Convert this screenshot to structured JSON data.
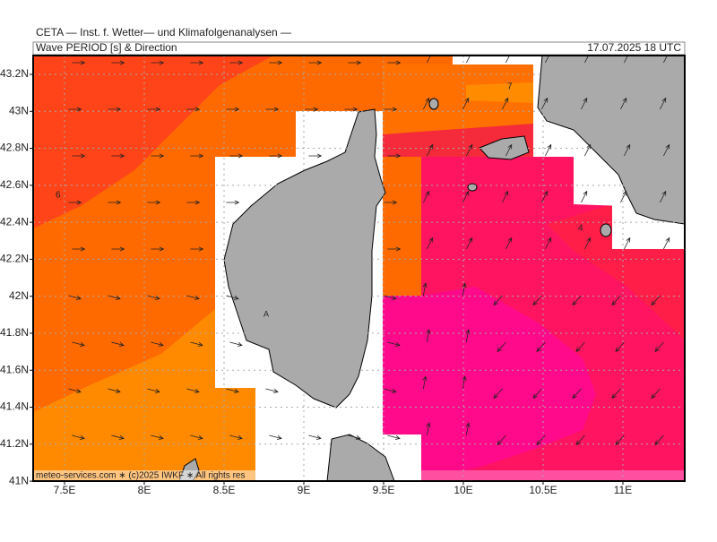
{
  "header": {
    "title": "CETA — Inst. f. Wetter— und Klimafolgenanalysen —",
    "subtitle": "Wave PERIOD [s] & Direction",
    "date": "17.07.2025 18 UTC"
  },
  "map": {
    "lon_ticks": [
      {
        "value": 7.5,
        "label": "7.5E"
      },
      {
        "value": 8,
        "label": "8E"
      },
      {
        "value": 8.5,
        "label": "8.5E"
      },
      {
        "value": 9,
        "label": "9E"
      },
      {
        "value": 9.5,
        "label": "9.5E"
      },
      {
        "value": 10,
        "label": "10E"
      },
      {
        "value": 10.5,
        "label": "10.5E"
      },
      {
        "value": 11,
        "label": "11E"
      }
    ],
    "lat_ticks": [
      {
        "value": 41,
        "label": "41N"
      },
      {
        "value": 41.2,
        "label": "41.2N"
      },
      {
        "value": 41.4,
        "label": "41.4N"
      },
      {
        "value": 41.6,
        "label": "41.6N"
      },
      {
        "value": 41.8,
        "label": "41.8N"
      },
      {
        "value": 42,
        "label": "42N"
      },
      {
        "value": 42.2,
        "label": "42.2N"
      },
      {
        "value": 42.4,
        "label": "42.4N"
      },
      {
        "value": 42.6,
        "label": "42.6N"
      },
      {
        "value": 42.8,
        "label": "42.8N"
      },
      {
        "value": 43,
        "label": "43N"
      },
      {
        "value": 43.2,
        "label": "43.2N"
      }
    ],
    "contour_labels": [
      "6",
      "7",
      "4",
      "A"
    ],
    "footer": "meteo-services.com ∗ (c)2025 IWKF ∗ All rights res"
  }
}
